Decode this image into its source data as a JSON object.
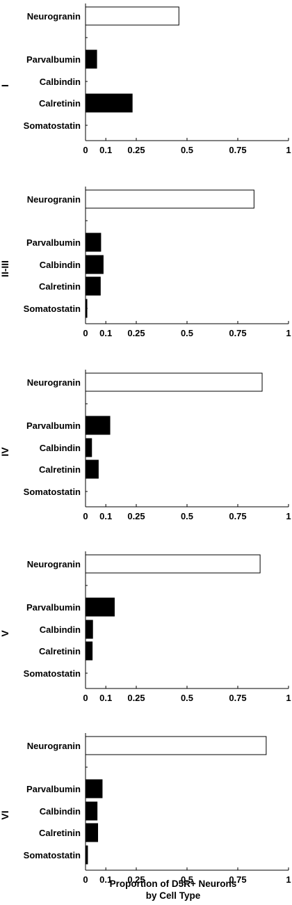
{
  "chart_data": {
    "type": "bar",
    "orientation": "horizontal",
    "categories": [
      "Neurogranin",
      "Parvalbumin",
      "Calbindin",
      "Calretinin",
      "Somatostatin"
    ],
    "colors": {
      "Neurogranin": "#ffffff",
      "Parvalbumin": "#000000",
      "Calbindin": "#000000",
      "Calretinin": "#000000",
      "Somatostatin": "#000000"
    },
    "xlim": [
      0,
      1
    ],
    "xticks": [
      0,
      0.1,
      0.25,
      0.5,
      0.75,
      1
    ],
    "xtick_labels": [
      "0",
      "0.1",
      "0.25",
      "0.5",
      "0.75",
      "1"
    ],
    "xlabel_lines": [
      "Proportion of D5R+ Neurons",
      "by Cell Type"
    ],
    "grid": false,
    "panels": [
      {
        "layer": "I",
        "values": [
          0.46,
          0.055,
          0.0,
          0.23,
          0.0
        ]
      },
      {
        "layer": "II-III",
        "values": [
          0.83,
          0.075,
          0.087,
          0.073,
          0.007
        ]
      },
      {
        "layer": "IV",
        "values": [
          0.87,
          0.12,
          0.03,
          0.063,
          0.0
        ]
      },
      {
        "layer": "V",
        "values": [
          0.86,
          0.142,
          0.035,
          0.033,
          0.0
        ]
      },
      {
        "layer": "VI",
        "values": [
          0.89,
          0.082,
          0.057,
          0.06,
          0.01
        ]
      }
    ]
  }
}
